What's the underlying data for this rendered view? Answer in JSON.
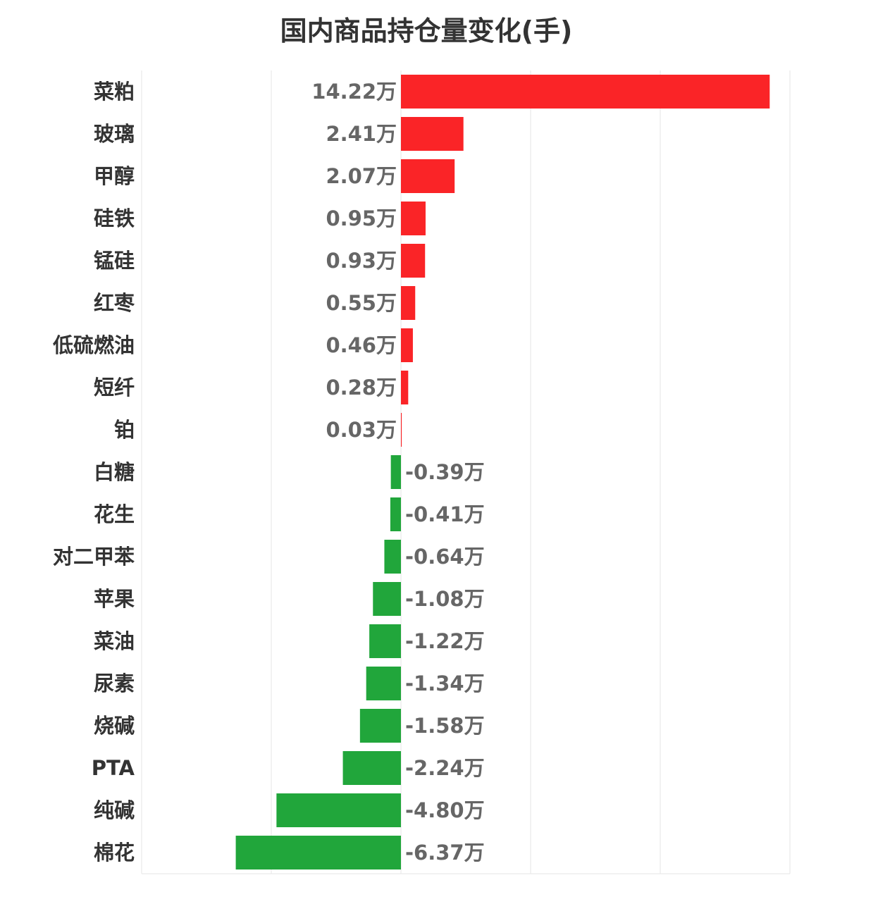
{
  "chart_data": {
    "type": "bar",
    "orientation": "horizontal",
    "title": "国内商品持仓量变化(手)",
    "unit": "万",
    "categories": [
      "菜粕",
      "玻璃",
      "甲醇",
      "硅铁",
      "锰硅",
      "红枣",
      "低硫燃油",
      "短纤",
      "铂",
      "白糖",
      "花生",
      "对二甲苯",
      "苹果",
      "菜油",
      "尿素",
      "烧碱",
      "PTA",
      "纯碱",
      "棉花"
    ],
    "values": [
      14.22,
      2.41,
      2.07,
      0.95,
      0.93,
      0.55,
      0.46,
      0.28,
      0.03,
      -0.39,
      -0.41,
      -0.64,
      -1.08,
      -1.22,
      -1.34,
      -1.58,
      -2.24,
      -4.8,
      -6.37
    ],
    "value_labels": [
      "14.22万",
      "2.41万",
      "2.07万",
      "0.95万",
      "0.93万",
      "0.55万",
      "0.46万",
      "0.28万",
      "0.03万",
      "-0.39万",
      "-0.41万",
      "-0.64万",
      "-1.08万",
      "-1.22万",
      "-1.34万",
      "-1.58万",
      "-2.24万",
      "-4.80万",
      "-6.37万"
    ],
    "xlim": [
      -10,
      15
    ],
    "grid": true,
    "colors": {
      "positive": "#fa2427",
      "negative": "#21a63b",
      "grid": "#e6e6e6"
    }
  }
}
